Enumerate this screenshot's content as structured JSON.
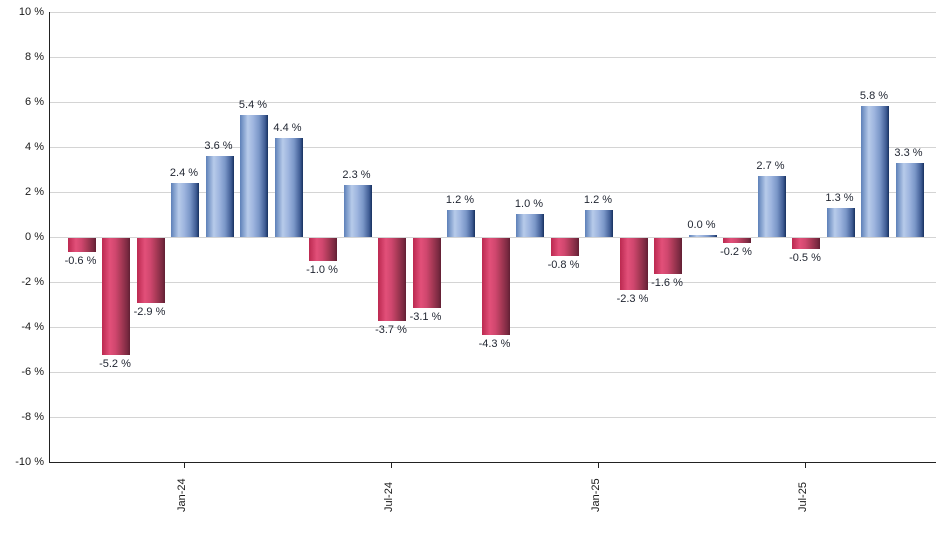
{
  "chart_data": {
    "type": "bar",
    "title": "",
    "xlabel": "",
    "ylabel": "",
    "ylim": [
      -10,
      10
    ],
    "y_tick_step": 2,
    "grid": "horizontal",
    "legend": "none",
    "y_tick_labels": [
      "10 %",
      "8 %",
      "6 %",
      "4 %",
      "2 %",
      "0 %",
      "-2 %",
      "-4 %",
      "-6 %",
      "-8 %",
      "-10 %"
    ],
    "y_tick_values": [
      10,
      8,
      6,
      4,
      2,
      0,
      -2,
      -4,
      -6,
      -8,
      -10
    ],
    "values": [
      -0.6,
      -5.2,
      -2.9,
      2.4,
      3.6,
      5.4,
      4.4,
      -1.0,
      2.3,
      -3.7,
      -3.1,
      1.2,
      -4.3,
      1.0,
      -0.8,
      1.2,
      -2.3,
      -1.6,
      0.0,
      -0.2,
      2.7,
      -0.5,
      1.3,
      5.8,
      3.3
    ],
    "data_labels": [
      "-0.6 %",
      "-5.2 %",
      "-2.9 %",
      "2.4 %",
      "3.6 %",
      "5.4 %",
      "4.4 %",
      "-1.0 %",
      "2.3 %",
      "-3.7 %",
      "-3.1 %",
      "1.2 %",
      "-4.3 %",
      "1.0 %",
      "-0.8 %",
      "1.2 %",
      "-2.3 %",
      "-1.6 %",
      "0.0 %",
      "-0.2 %",
      "2.7 %",
      "-0.5 %",
      "1.3 %",
      "5.8 %",
      "3.3 %"
    ],
    "x_ticks": [
      {
        "label": "Jan-24",
        "bar_index": 3
      },
      {
        "label": "Jul-24",
        "bar_index": 9
      },
      {
        "label": "Jan-25",
        "bar_index": 15
      },
      {
        "label": "Jul-25",
        "bar_index": 21
      }
    ]
  },
  "colors": {
    "background": "#ffffff",
    "axis": "#222222",
    "gridline": "#d4d4d4",
    "label_text": "#1f2430",
    "axis_text": "#1a1a1a",
    "positive_bar_gradient": [
      "#5d80b8",
      "#b7cbea",
      "#9db4de",
      "#7b97c8",
      "#3f5c94",
      "#16305e"
    ],
    "negative_bar_gradient": [
      "#bb2950",
      "#e25079",
      "#d0476e",
      "#a93a57",
      "#7c2a42",
      "#611f33"
    ]
  }
}
